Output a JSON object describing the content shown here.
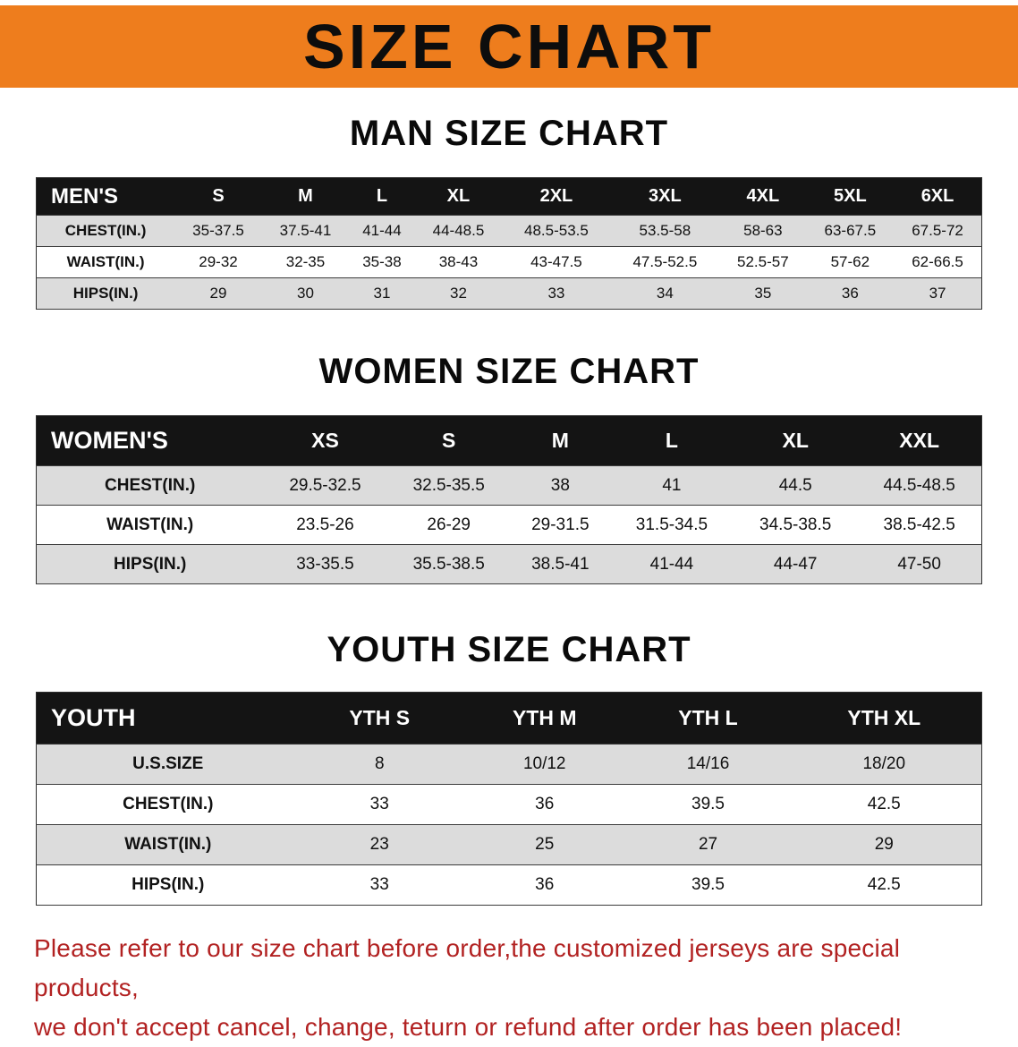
{
  "banner": {
    "title": "SIZE CHART",
    "bg_color": "#ee7d1d",
    "text_color": "#0d0d0d"
  },
  "chart_data": [
    {
      "type": "table",
      "title": "MAN SIZE CHART",
      "columns": [
        "MEN'S",
        "S",
        "M",
        "L",
        "XL",
        "2XL",
        "3XL",
        "4XL",
        "5XL",
        "6XL"
      ],
      "rows": [
        [
          "CHEST(IN.)",
          "35-37.5",
          "37.5-41",
          "41-44",
          "44-48.5",
          "48.5-53.5",
          "53.5-58",
          "58-63",
          "63-67.5",
          "67.5-72"
        ],
        [
          "WAIST(IN.)",
          "29-32",
          "32-35",
          "35-38",
          "38-43",
          "43-47.5",
          "47.5-52.5",
          "52.5-57",
          "57-62",
          "62-66.5"
        ],
        [
          "HIPS(IN.)",
          "29",
          "30",
          "31",
          "32",
          "33",
          "34",
          "35",
          "36",
          "37"
        ]
      ]
    },
    {
      "type": "table",
      "title": "WOMEN SIZE CHART",
      "columns": [
        "WOMEN'S",
        "XS",
        "S",
        "M",
        "L",
        "XL",
        "XXL"
      ],
      "rows": [
        [
          "CHEST(IN.)",
          "29.5-32.5",
          "32.5-35.5",
          "38",
          "41",
          "44.5",
          "44.5-48.5"
        ],
        [
          "WAIST(IN.)",
          "23.5-26",
          "26-29",
          "29-31.5",
          "31.5-34.5",
          "34.5-38.5",
          "38.5-42.5"
        ],
        [
          "HIPS(IN.)",
          "33-35.5",
          "35.5-38.5",
          "38.5-41",
          "41-44",
          "44-47",
          "47-50"
        ]
      ]
    },
    {
      "type": "table",
      "title": "YOUTH SIZE CHART",
      "columns": [
        "YOUTH",
        "YTH S",
        "YTH M",
        "YTH L",
        "YTH XL"
      ],
      "rows": [
        [
          "U.S.SIZE",
          "8",
          "10/12",
          "14/16",
          "18/20"
        ],
        [
          "CHEST(IN.)",
          "33",
          "36",
          "39.5",
          "42.5"
        ],
        [
          "WAIST(IN.)",
          "23",
          "25",
          "27",
          "29"
        ],
        [
          "HIPS(IN.)",
          "33",
          "36",
          "39.5",
          "42.5"
        ]
      ]
    }
  ],
  "footer_note": {
    "color": "#b22222",
    "lines": [
      "Please refer to our size chart before order,the customized jerseys are special products,",
      "we don't accept cancel, change, teturn or refund after order has been placed!"
    ]
  }
}
